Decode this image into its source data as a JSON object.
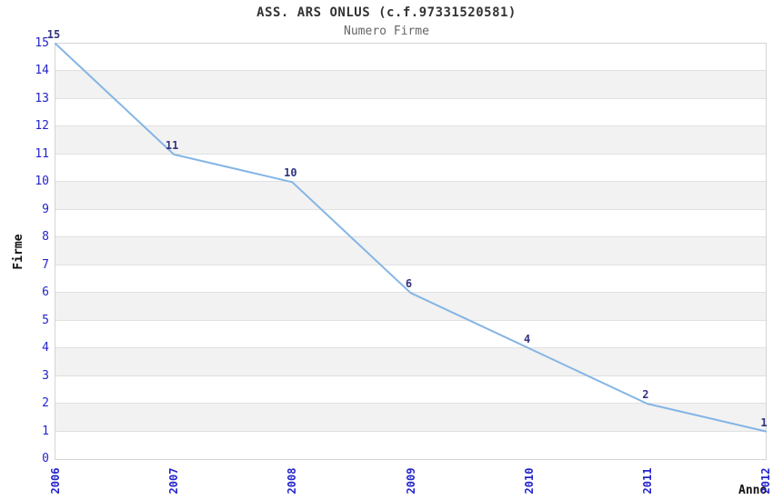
{
  "chart_data": {
    "type": "line",
    "title": "ASS. ARS ONLUS (c.f.97331520581)",
    "subtitle": "Numero Firme",
    "xlabel": "Anno",
    "ylabel": "Firme",
    "categories": [
      "2006",
      "2007",
      "2008",
      "2009",
      "2010",
      "2011",
      "2012"
    ],
    "series": [
      {
        "name": "Numero Firme",
        "values": [
          15,
          11,
          10,
          6,
          4,
          2,
          1
        ]
      }
    ],
    "ylim": [
      0,
      15
    ],
    "ytick_step": 1,
    "point_labels": [
      "15",
      "11",
      "10",
      "6",
      "4",
      "2",
      "1"
    ],
    "grid": "horizontal-alternating-bands",
    "legend_position": "none",
    "colors": {
      "line": "#85b5e5",
      "tick_label": "#2424cc",
      "point_label": "#333380",
      "band_light": "#ffffff",
      "band_dark": "#f2f2f2",
      "band_separator": "#e0e0e0",
      "plot_border": "#d4d4d4",
      "title": "#333333",
      "subtitle": "#666666",
      "axis_title": "#111111"
    }
  }
}
